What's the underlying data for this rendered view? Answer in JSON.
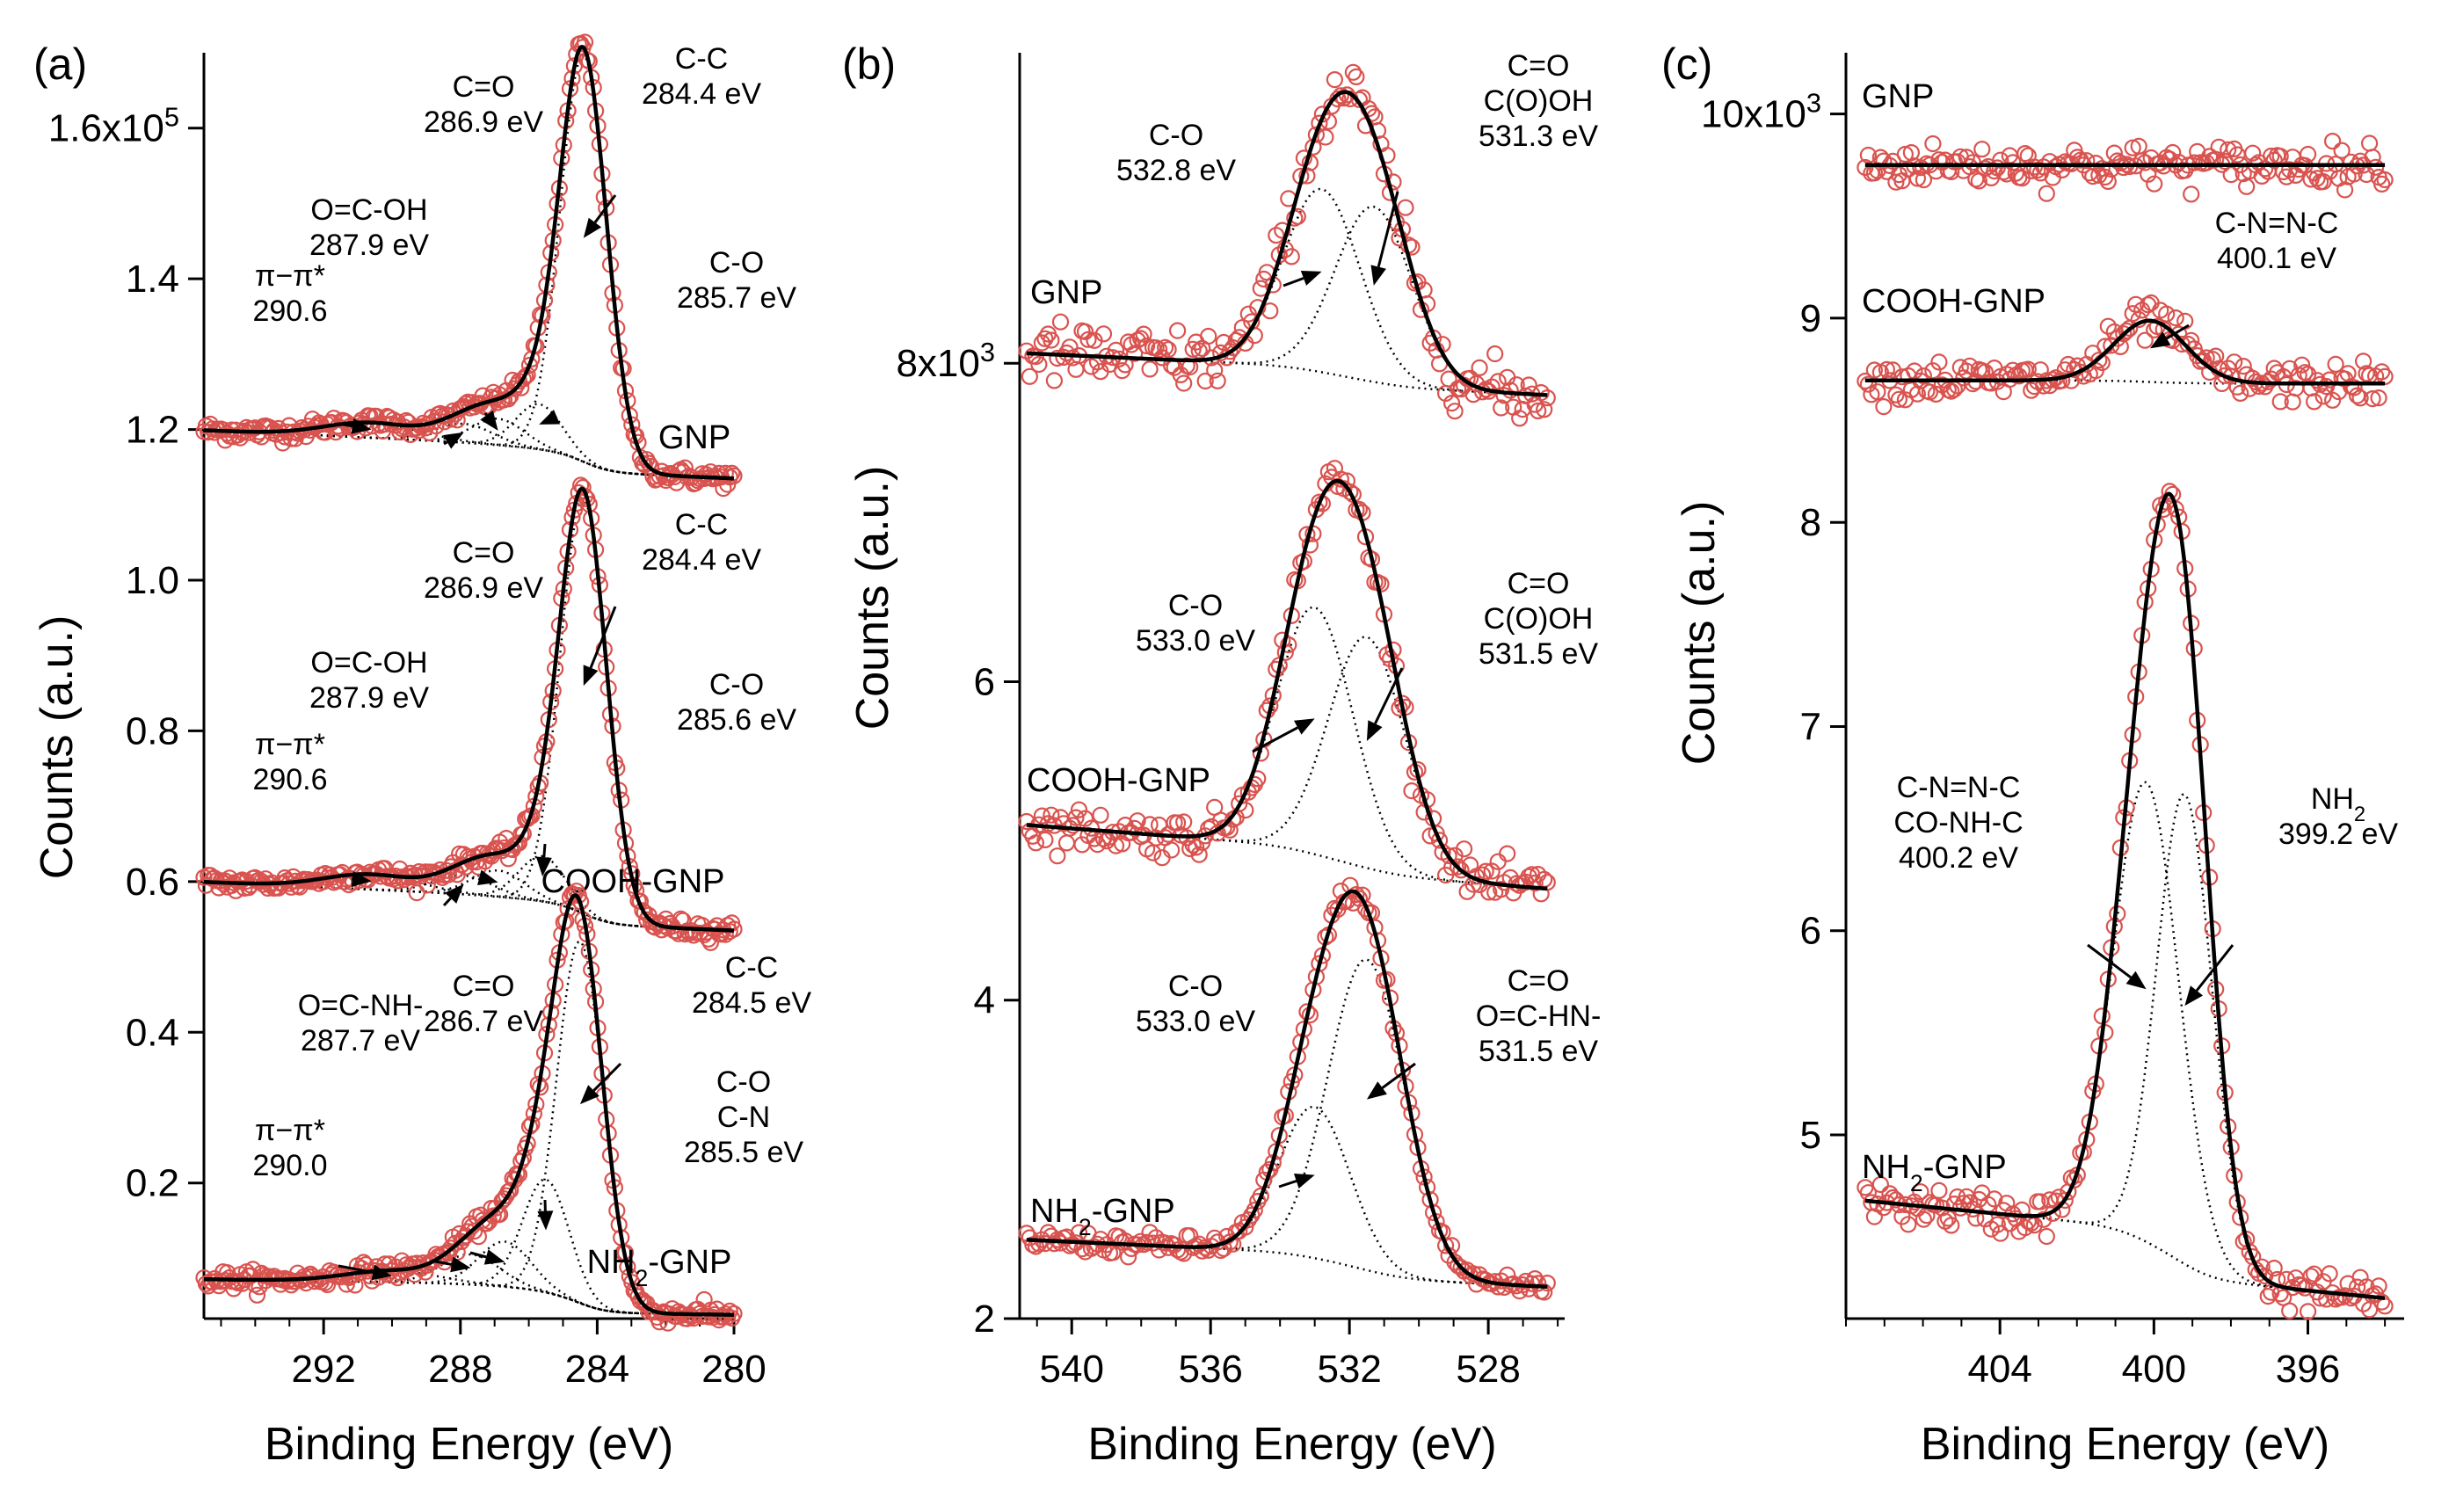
{
  "chart_data": [
    {
      "panel": "(a)",
      "type": "scatter",
      "xlabel": "Binding Energy (eV)",
      "ylabel": "Counts (a.u.)",
      "xlim": [
        295.5,
        280
      ],
      "ylim": [
        0.02,
        1.7
      ],
      "x_ticks": [
        292,
        288,
        284,
        280
      ],
      "y_ticks": [
        {
          "v": 0.2,
          "t": "0.2"
        },
        {
          "v": 0.4,
          "t": "0.4"
        },
        {
          "v": 0.6,
          "t": "0.6"
        },
        {
          "v": 0.8,
          "t": "0.8"
        },
        {
          "v": 1.0,
          "t": "1.0"
        },
        {
          "v": 1.2,
          "t": "1.2"
        },
        {
          "v": 1.4,
          "t": "1.4"
        },
        {
          "v": 1.6,
          "t": "1.6x10",
          "exp": "5"
        }
      ],
      "series": [
        {
          "name": "GNP",
          "background": 1.13,
          "x_start": 295.5,
          "x_end": 280,
          "bg_left": 1.165,
          "bg_right": 1.135,
          "peaks": [
            {
              "label": [
                "C-C",
                "284.4 eV"
              ],
              "center": 284.4,
              "height": 0.54,
              "width": 0.8
            },
            {
              "label": [
                "C-O",
                "285.7 eV"
              ],
              "center": 285.7,
              "height": 0.06,
              "width": 0.8
            },
            {
              "label": [
                "C=O",
                "286.9 eV"
              ],
              "center": 286.9,
              "height": 0.035,
              "width": 0.9
            },
            {
              "label": [
                "O=C-OH",
                "287.9 eV"
              ],
              "center": 287.9,
              "height": 0.025,
              "width": 1.0
            },
            {
              "label": [
                "π−π*",
                "290.6"
              ],
              "center": 290.6,
              "height": 0.02,
              "width": 1.6
            }
          ]
        },
        {
          "name": "COOH-GNP",
          "x_start": 295.5,
          "x_end": 280,
          "bg_left": 0.565,
          "bg_right": 0.535,
          "peaks": [
            {
              "label": [
                "C-C",
                "284.4 eV"
              ],
              "center": 284.4,
              "height": 0.55,
              "width": 0.8
            },
            {
              "label": [
                "C-O",
                "285.6 eV"
              ],
              "center": 285.6,
              "height": 0.06,
              "width": 0.8
            },
            {
              "label": [
                "C=O",
                "286.9 eV"
              ],
              "center": 286.9,
              "height": 0.035,
              "width": 0.9
            },
            {
              "label": [
                "O=C-OH",
                "287.9 eV"
              ],
              "center": 287.9,
              "height": 0.025,
              "width": 1.0
            },
            {
              "label": [
                "π−π*",
                "290.6"
              ],
              "center": 290.6,
              "height": 0.02,
              "width": 1.6
            }
          ]
        },
        {
          "name": "NH",
          "name_sub": "2",
          "name_tail": "-GNP",
          "x_start": 295.5,
          "x_end": 280,
          "bg_left": 0.035,
          "bg_right": 0.025,
          "peaks": [
            {
              "label": [
                "C-C",
                "284.5 eV"
              ],
              "center": 284.5,
              "height": 0.48,
              "width": 0.8
            },
            {
              "label": [
                "C-O",
                "C-N",
                "285.5 eV"
              ],
              "center": 285.5,
              "height": 0.15,
              "width": 0.8
            },
            {
              "label": [
                "C=O",
                "286.7 eV"
              ],
              "center": 286.7,
              "height": 0.06,
              "width": 0.9
            },
            {
              "label": [
                "O=C-NH-",
                "287.7 eV"
              ],
              "center": 287.7,
              "height": 0.04,
              "width": 1.0
            },
            {
              "label": [
                "π−π*",
                "290.0"
              ],
              "center": 290.0,
              "height": 0.015,
              "width": 1.6
            }
          ]
        }
      ]
    },
    {
      "panel": "(b)",
      "type": "scatter",
      "xlabel": "Binding Energy (eV)",
      "ylabel": "Counts (a.u.)",
      "xlim": [
        541.5,
        525.8
      ],
      "ylim": [
        2,
        9.95
      ],
      "x_ticks": [
        540,
        536,
        532,
        528
      ],
      "y_ticks": [
        {
          "v": 2,
          "t": "2"
        },
        {
          "v": 4,
          "t": "4"
        },
        {
          "v": 6,
          "t": "6"
        },
        {
          "v": 8,
          "t": "8x10",
          "exp": "3"
        }
      ],
      "series": [
        {
          "name": "GNP",
          "x_start": 541.3,
          "x_end": 526.3,
          "bg_left": 7.95,
          "bg_right": 7.8,
          "peaks": [
            {
              "label": [
                "C-O",
                "532.8 eV"
              ],
              "center": 532.8,
              "height": 1.15,
              "width": 1.3
            },
            {
              "label": [
                "C=O",
                "C(O)OH",
                "531.3 eV"
              ],
              "center": 531.3,
              "height": 1.1,
              "width": 1.3
            }
          ]
        },
        {
          "name": "COOH-GNP",
          "x_start": 541.3,
          "x_end": 526.3,
          "bg_left": 4.95,
          "bg_right": 4.7,
          "peaks": [
            {
              "label": [
                "C-O",
                "533.0 eV"
              ],
              "center": 533.0,
              "height": 1.55,
              "width": 1.3
            },
            {
              "label": [
                "C=O",
                "C(O)OH",
                "531.5 eV"
              ],
              "center": 531.5,
              "height": 1.45,
              "width": 1.3
            }
          ]
        },
        {
          "name": "NH",
          "name_sub": "2",
          "name_tail": "-GNP",
          "x_start": 541.3,
          "x_end": 526.3,
          "bg_left": 2.35,
          "bg_right": 2.2,
          "peaks": [
            {
              "label": [
                "C-O",
                "533.0 eV"
              ],
              "center": 533.0,
              "height": 0.95,
              "width": 1.2
            },
            {
              "label": [
                "C=O",
                "O=C-HN-",
                "531.5 eV"
              ],
              "center": 531.5,
              "height": 1.95,
              "width": 1.3
            }
          ]
        }
      ]
    },
    {
      "panel": "(c)",
      "type": "scatter",
      "xlabel": "Binding Energy (eV)",
      "ylabel": "Counts (a.u.)",
      "xlim": [
        408,
        393.5
      ],
      "ylim": [
        4.1,
        10.3
      ],
      "x_ticks": [
        404,
        400,
        396
      ],
      "y_ticks": [
        {
          "v": 5,
          "t": "5"
        },
        {
          "v": 6,
          "t": "6"
        },
        {
          "v": 7,
          "t": "7"
        },
        {
          "v": 8,
          "t": "8"
        },
        {
          "v": 9,
          "t": "9"
        },
        {
          "v": 10,
          "t": "10x10",
          "exp": "3"
        }
      ],
      "series": [
        {
          "name": "GNP",
          "x_start": 407.5,
          "x_end": 394,
          "bg_left": 9.75,
          "bg_right": 9.75,
          "peaks": []
        },
        {
          "name": "COOH-GNP",
          "x_start": 407.5,
          "x_end": 394,
          "bg_left": 8.68,
          "bg_right": 8.68,
          "peaks": [
            {
              "label": [
                "C-N=N-C",
                "400.1 eV"
              ],
              "center": 400.1,
              "height": 0.3,
              "width": 1.1
            }
          ]
        },
        {
          "name": "NH",
          "name_sub": "2",
          "name_tail": "-GNP",
          "x_start": 407.5,
          "x_end": 394,
          "bg_left": 4.45,
          "bg_right": 4.2,
          "peaks": [
            {
              "label": [
                "C-N=N-C",
                "CO-NH-C",
                "400.2 eV"
              ],
              "center": 400.2,
              "height": 2.25,
              "width": 1.0
            },
            {
              "label": [
                "NH",
                "399.2 eV"
              ],
              "label_sub": "2",
              "center": 399.2,
              "height": 2.3,
              "width": 0.85
            }
          ]
        }
      ]
    }
  ],
  "colors": {
    "points": "#d9534f",
    "fit": "#000000",
    "components": "#000000"
  }
}
